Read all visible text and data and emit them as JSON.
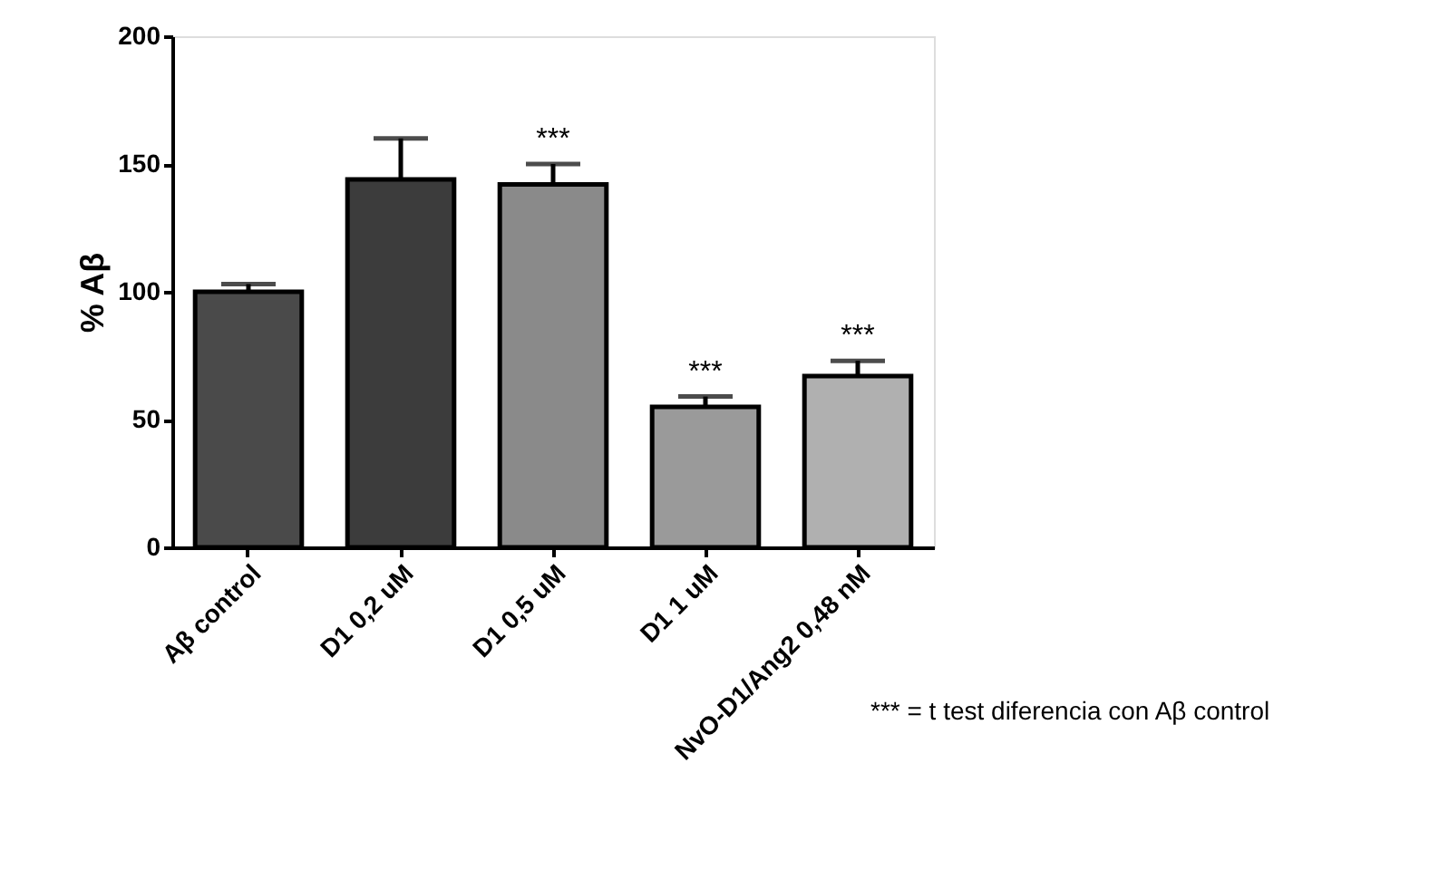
{
  "chart_data": {
    "type": "bar",
    "ylabel": "% Aβ",
    "categories": [
      "Aβ control",
      "D1 0,2 uM",
      "D1 0,5 uM",
      "D1 1 uM",
      "NvO-D1/Ang2 0,48 nM"
    ],
    "values": [
      100,
      144,
      142,
      55,
      67
    ],
    "colors": [
      "#4a4a4a",
      "#3c3c3c",
      "#8a8a8a",
      "#9a9a9a",
      "#b0b0b0"
    ],
    "errors": [
      [
        100,
        103
      ],
      [
        144,
        160
      ],
      [
        142,
        150
      ],
      [
        55,
        59
      ],
      [
        67,
        73
      ]
    ],
    "ylim": [
      0,
      200
    ],
    "yticks": [
      0,
      50,
      100,
      150,
      200
    ],
    "grid": false,
    "annotations": [
      {
        "text": "***",
        "x": "D1 0,5 uM",
        "y": 150
      },
      {
        "text": "***",
        "x": "D1 1 uM",
        "y": 59
      },
      {
        "text": "***",
        "x": "NvO-D1/Ang2 0,48 nM",
        "y": 73
      },
      "*** = t test diferencia con Aβ control"
    ]
  }
}
